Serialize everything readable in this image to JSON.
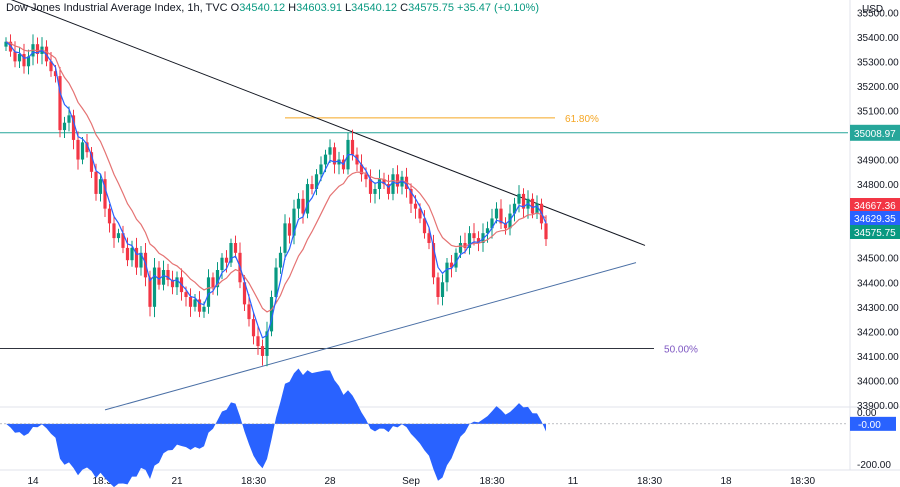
{
  "legend": {
    "symbol": "Dow Jones Industrial Average Index, 1h, TVC",
    "open_label": "O",
    "open": "34540.12",
    "high_label": "H",
    "high": "34603.91",
    "low_label": "L",
    "low": "34540.12",
    "close_label": "C",
    "close": "34575.75",
    "change": "+35.47 (+0.10%)"
  },
  "currency": "USD",
  "colors": {
    "up": "#089981",
    "down": "#f23645",
    "ma_fast": "#2962ff",
    "ma_slow": "#e57373",
    "hline": "#26a69a",
    "fib618": "#f5a623",
    "fib50": "#7e57c2",
    "trendline": "#131722",
    "support": "#4a6fa5",
    "osc_fill": "#2962ff"
  },
  "chart_data": [
    {
      "type": "candlestick",
      "title": "Dow Jones Industrial Average Index, 1h, TVC",
      "ylim": [
        33900,
        35550
      ],
      "y_ticks": [
        33900,
        34000,
        34100,
        34200,
        34300,
        34400,
        34500,
        34600,
        34700,
        34800,
        34900,
        35000,
        35100,
        35200,
        35300,
        35400,
        35500
      ],
      "y_tick_labels": [
        "33900.00",
        "34000.00",
        "34100.00",
        "34200.00",
        "34300.00",
        "34400.00",
        "34500.00",
        "34600.00",
        "34700.00",
        "34800.00",
        "34900.00",
        "35000.00",
        "35100.00",
        "35200.00",
        "35300.00",
        "35400.00",
        "35500.00"
      ],
      "x_tick_labels": [
        "14",
        "18:30",
        "21",
        "18:30",
        "28",
        "Sep",
        "18:30",
        "11",
        "18:30",
        "18",
        "18:30"
      ],
      "x_tick_bars": [
        6,
        22,
        38,
        55,
        72,
        90,
        108,
        126,
        143,
        160,
        177
      ],
      "closes": [
        35380,
        35340,
        35300,
        35330,
        35280,
        35320,
        35370,
        35330,
        35360,
        35300,
        35260,
        35240,
        35020,
        35050,
        35080,
        34980,
        34900,
        34970,
        34930,
        34850,
        34760,
        34820,
        34700,
        34640,
        34580,
        34600,
        34540,
        34490,
        34540,
        34460,
        34520,
        34420,
        34300,
        34460,
        34390,
        34450,
        34410,
        34380,
        34420,
        34360,
        34340,
        34300,
        34330,
        34280,
        34300,
        34420,
        34380,
        34450,
        34500,
        34480,
        34560,
        34520,
        34400,
        34310,
        34250,
        34180,
        34140,
        34100,
        34200,
        34340,
        34460,
        34520,
        34640,
        34590,
        34700,
        34740,
        34680,
        34800,
        34780,
        34840,
        34880,
        34920,
        34950,
        34880,
        34900,
        34860,
        34980,
        34920,
        34880,
        34840,
        34820,
        34760,
        34780,
        34820,
        34800,
        34760,
        34840,
        34790,
        34830,
        34780,
        34720,
        34700,
        34660,
        34600,
        34560,
        34420,
        34340,
        34400,
        34480,
        34460,
        34520,
        34560,
        34540,
        34600,
        34580,
        34560,
        34600,
        34620,
        34660,
        34700,
        34640,
        34620,
        34680,
        34720,
        34760,
        34700,
        34740,
        34680,
        34720,
        34640,
        34575.75
      ],
      "series": [
        {
          "name": "",
          "type": "ma_fast"
        },
        {
          "name": "",
          "type": "ma_slow"
        }
      ],
      "horizontal_lines": [
        {
          "label": "35008.97",
          "value": 35008.97,
          "kind": "price_line"
        },
        {
          "label": "61.80%",
          "value": 35070,
          "kind": "fib"
        },
        {
          "label": "50.00%",
          "value": 34130,
          "kind": "fib"
        }
      ],
      "trendlines": [
        {
          "kind": "resistance",
          "from": [
            0,
            35560
          ],
          "to": [
            142,
            34550
          ]
        },
        {
          "kind": "support",
          "from": [
            22,
            33880
          ],
          "to": [
            140,
            34480
          ]
        }
      ],
      "price_tags": [
        "34667.36",
        "34629.35",
        "34575.75"
      ],
      "oscillator": {
        "ylim": [
          -200,
          60
        ],
        "tick_label_zero": "0.00",
        "tick_label_min": "-200.00",
        "value_label": "-0.00"
      }
    }
  ]
}
